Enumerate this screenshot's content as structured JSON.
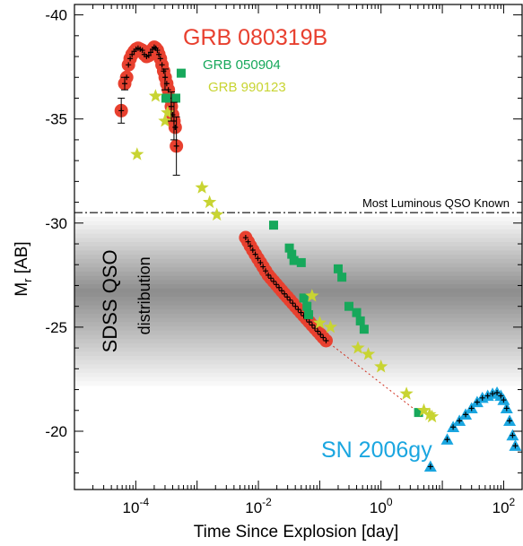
{
  "chart_data": {
    "type": "scatter",
    "title": "",
    "xlabel": "Time Since Explosion [day]",
    "ylabel_main": "M",
    "ylabel_sub": "r",
    "ylabel_unit": " [AB]",
    "x_scale": "log",
    "xlim": [
      1e-05,
      200
    ],
    "ylim": [
      -17.2,
      -40.5
    ],
    "y_inverted": true,
    "x_ticks": [
      {
        "value": 0.0001,
        "base": "10",
        "exp": "-4"
      },
      {
        "value": 0.01,
        "base": "10",
        "exp": "-2"
      },
      {
        "value": 1,
        "base": "10",
        "exp": "0"
      },
      {
        "value": 100,
        "base": "10",
        "exp": "2"
      }
    ],
    "y_ticks": [
      {
        "value": -40,
        "label": "-40"
      },
      {
        "value": -35,
        "label": "-35"
      },
      {
        "value": -30,
        "label": "-30"
      },
      {
        "value": -25,
        "label": "-25"
      },
      {
        "value": -20,
        "label": "-20"
      }
    ],
    "reference_line": {
      "y": -30.5,
      "label": "Most Luminous QSO Known"
    },
    "band": {
      "y_range": [
        -22.2,
        -30.3
      ],
      "label_line1": "SDSS QSO",
      "label_line2": "distribution"
    },
    "colors": {
      "grb080319b": "#e8402f",
      "grb050904": "#17a85b",
      "grb990123": "#c8d432",
      "sn2006gy": "#1aa6e0",
      "errorbar": "#000000",
      "refline": "#333333",
      "extrapolation": "#d03020"
    },
    "series": [
      {
        "name": "GRB 080319B",
        "marker": "circle",
        "points": [
          [
            5.8e-05,
            -35.4
          ],
          [
            6.6e-05,
            -36.7
          ],
          [
            7.1e-05,
            -37.0
          ],
          [
            7.6e-05,
            -37.6
          ],
          [
            8.1e-05,
            -37.9
          ],
          [
            8.7e-05,
            -38.1
          ],
          [
            9.4e-05,
            -38.25
          ],
          [
            0.000101,
            -38.35
          ],
          [
            0.000109,
            -38.4
          ],
          [
            0.000118,
            -38.35
          ],
          [
            0.000128,
            -38.3
          ],
          [
            0.000138,
            -38.1
          ],
          [
            0.00015,
            -38.0
          ],
          [
            0.000163,
            -38.05
          ],
          [
            0.000175,
            -38.2
          ],
          [
            0.000188,
            -38.35
          ],
          [
            0.0002,
            -38.45
          ],
          [
            0.000212,
            -38.4
          ],
          [
            0.000225,
            -38.3
          ],
          [
            0.000238,
            -38.1
          ],
          [
            0.000252,
            -37.9
          ],
          [
            0.000268,
            -37.6
          ],
          [
            0.000285,
            -37.3
          ],
          [
            0.000302,
            -37.0
          ],
          [
            0.00032,
            -36.7
          ],
          [
            0.00034,
            -36.4
          ],
          [
            0.00036,
            -36.0
          ],
          [
            0.00038,
            -35.6
          ],
          [
            0.0004,
            -35.2
          ],
          [
            0.00042,
            -34.9
          ],
          [
            0.00044,
            -34.6
          ],
          [
            0.00046,
            -33.7
          ],
          [
            0.0062,
            -29.3
          ],
          [
            0.0068,
            -29.1
          ],
          [
            0.0074,
            -28.9
          ],
          [
            0.0081,
            -28.7
          ],
          [
            0.0089,
            -28.5
          ],
          [
            0.0098,
            -28.3
          ],
          [
            0.0108,
            -28.1
          ],
          [
            0.0119,
            -27.9
          ],
          [
            0.0131,
            -27.7
          ],
          [
            0.0145,
            -27.5
          ],
          [
            0.016,
            -27.35
          ],
          [
            0.0177,
            -27.2
          ],
          [
            0.0196,
            -27.05
          ],
          [
            0.0217,
            -26.9
          ],
          [
            0.024,
            -26.75
          ],
          [
            0.0266,
            -26.6
          ],
          [
            0.0295,
            -26.45
          ],
          [
            0.0327,
            -26.3
          ],
          [
            0.0363,
            -26.15
          ],
          [
            0.0402,
            -26.0
          ],
          [
            0.0446,
            -25.85
          ],
          [
            0.0495,
            -25.7
          ],
          [
            0.055,
            -25.55
          ],
          [
            0.061,
            -25.4
          ],
          [
            0.0677,
            -25.25
          ],
          [
            0.0752,
            -25.1
          ],
          [
            0.0835,
            -24.95
          ],
          [
            0.0927,
            -24.8
          ],
          [
            0.103,
            -24.65
          ],
          [
            0.114,
            -24.5
          ],
          [
            0.127,
            -24.35
          ]
        ],
        "error_points": [
          [
            5.8e-05,
            -35.4,
            0.6
          ],
          [
            6.6e-05,
            -36.7,
            0.3
          ],
          [
            0.0003,
            -36.9,
            0.5
          ],
          [
            0.00038,
            -35.6,
            0.7
          ],
          [
            0.00042,
            -34.9,
            0.9
          ],
          [
            0.00046,
            -33.7,
            1.4
          ]
        ]
      },
      {
        "name": "GRB 050904",
        "marker": "square",
        "points": [
          [
            0.00031,
            -36.0
          ],
          [
            0.00045,
            -36.0
          ],
          [
            0.00055,
            -37.2
          ],
          [
            0.0177,
            -29.9
          ],
          [
            0.032,
            -28.8
          ],
          [
            0.035,
            -28.5
          ],
          [
            0.038,
            -28.2
          ],
          [
            0.05,
            -28.1
          ],
          [
            0.055,
            -26.4
          ],
          [
            0.062,
            -26.0
          ],
          [
            0.066,
            -25.6
          ],
          [
            0.2,
            -27.8
          ],
          [
            0.23,
            -27.4
          ],
          [
            0.3,
            -26.0
          ],
          [
            0.4,
            -25.7
          ],
          [
            0.46,
            -25.3
          ],
          [
            0.53,
            -24.9
          ],
          [
            4.1,
            -20.9
          ]
        ]
      },
      {
        "name": "GRB 990123",
        "marker": "star",
        "points": [
          [
            0.000105,
            -33.3
          ],
          [
            0.00021,
            -36.1
          ],
          [
            0.0003,
            -34.9
          ],
          [
            0.00033,
            -35.3
          ],
          [
            0.0012,
            -31.7
          ],
          [
            0.0016,
            -31.0
          ],
          [
            0.0021,
            -30.4
          ],
          [
            0.075,
            -26.5
          ],
          [
            0.1,
            -25.2
          ],
          [
            0.15,
            -25.0
          ],
          [
            0.42,
            -24.0
          ],
          [
            0.62,
            -23.7
          ],
          [
            1.0,
            -23.1
          ],
          [
            2.6,
            -21.8
          ],
          [
            5.0,
            -21.0
          ],
          [
            6.2,
            -20.8
          ],
          [
            6.8,
            -20.7
          ]
        ]
      },
      {
        "name": "SN 2006gy",
        "marker": "triangle",
        "points": [
          [
            6.4,
            -18.3
          ],
          [
            12,
            -19.6
          ],
          [
            15,
            -20.2
          ],
          [
            19,
            -20.5
          ],
          [
            24,
            -20.8
          ],
          [
            30,
            -21.1
          ],
          [
            37,
            -21.4
          ],
          [
            45,
            -21.6
          ],
          [
            55,
            -21.7
          ],
          [
            66,
            -21.8
          ],
          [
            78,
            -21.85
          ],
          [
            90,
            -21.7
          ],
          [
            100,
            -21.5
          ],
          [
            112,
            -21.1
          ],
          [
            125,
            -20.5
          ],
          [
            140,
            -19.8
          ],
          [
            155,
            -19.3
          ]
        ]
      }
    ],
    "extrapolation_line": [
      [
        0.127,
        -24.35
      ],
      [
        4.1,
        -20.9
      ]
    ],
    "annotations": {
      "grb080319b": "GRB 080319B",
      "grb050904": "GRB 050904",
      "grb990123": "GRB 990123",
      "sn2006gy": "SN 2006gy"
    }
  }
}
